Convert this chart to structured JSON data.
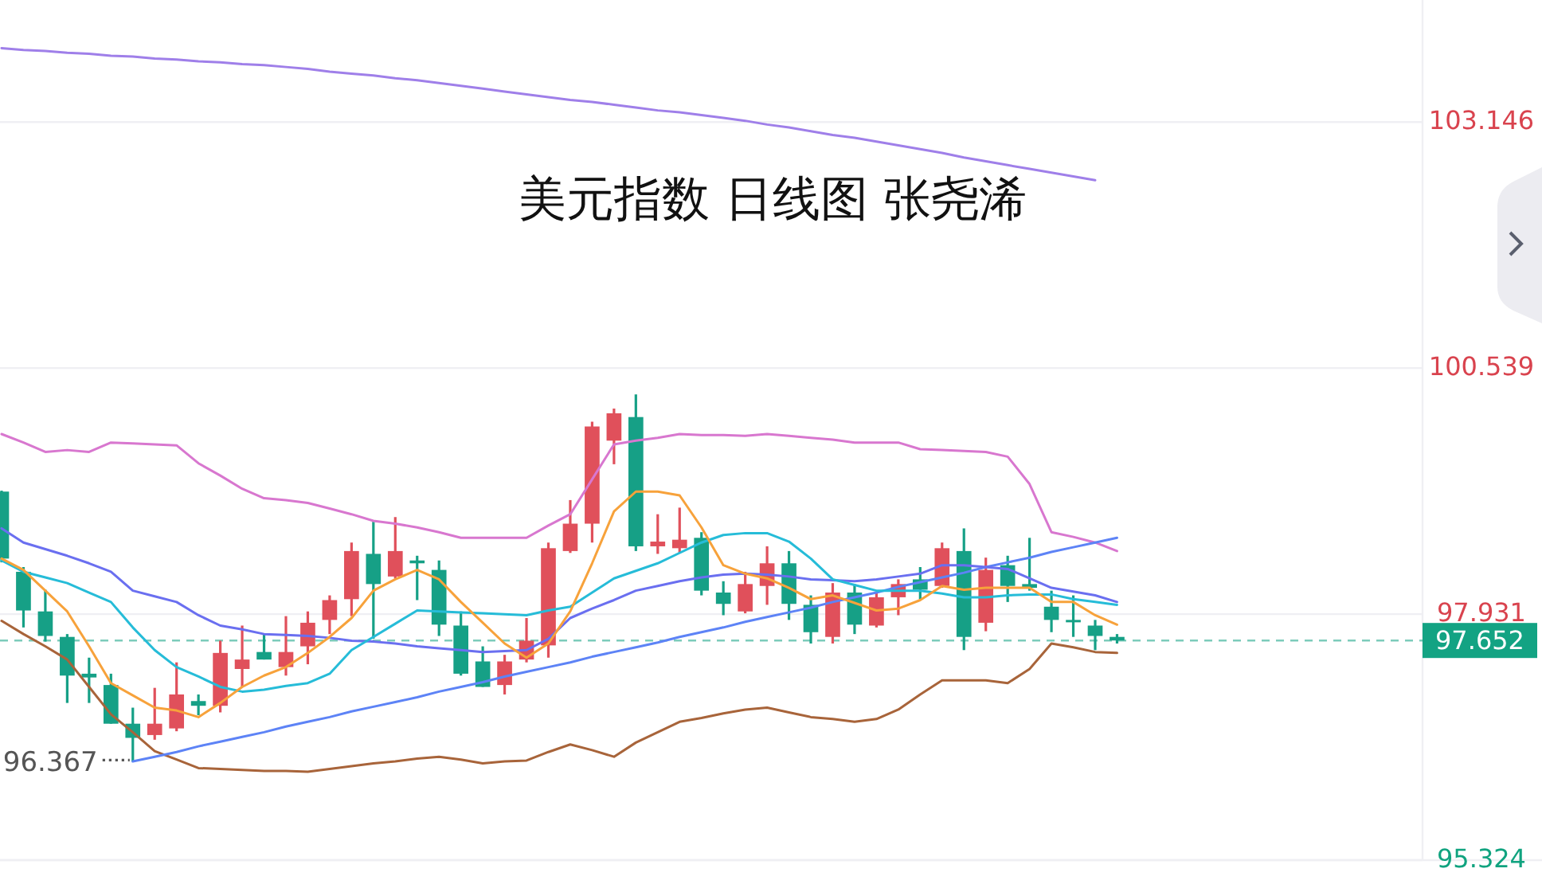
{
  "chart_data": {
    "type": "candlestick",
    "title": "美元指数 日线图 张尧浠",
    "categories": [
      null,
      null,
      null,
      null,
      null,
      null,
      null,
      null,
      null,
      null,
      null,
      null,
      null,
      null,
      null,
      null,
      null,
      null,
      null,
      null,
      null,
      null,
      null,
      null,
      null,
      null,
      null,
      null,
      null,
      null,
      null,
      null,
      null,
      null,
      null,
      null,
      null,
      null,
      null,
      null,
      null,
      null,
      null,
      null,
      null,
      null,
      null,
      null,
      null,
      null,
      null,
      null
    ],
    "ohlc": [
      [
        99.23,
        99.24,
        98.48,
        98.52
      ],
      [
        98.38,
        98.43,
        97.79,
        97.97
      ],
      [
        97.96,
        98.19,
        97.64,
        97.7
      ],
      [
        97.69,
        97.72,
        96.99,
        97.28
      ],
      [
        97.3,
        97.47,
        96.99,
        97.26
      ],
      [
        97.18,
        97.3,
        96.77,
        96.77
      ],
      [
        96.77,
        96.94,
        96.367,
        96.62
      ],
      [
        96.65,
        97.15,
        96.6,
        96.77
      ],
      [
        96.72,
        97.42,
        96.69,
        97.08
      ],
      [
        97.01,
        97.08,
        96.86,
        96.96
      ],
      [
        96.96,
        97.65,
        96.89,
        97.52
      ],
      [
        97.35,
        97.81,
        97.16,
        97.45
      ],
      [
        97.53,
        97.72,
        97.45,
        97.45
      ],
      [
        97.37,
        97.91,
        97.28,
        97.53
      ],
      [
        97.59,
        97.96,
        97.4,
        97.84
      ],
      [
        97.87,
        98.13,
        97.72,
        98.08
      ],
      [
        98.09,
        98.69,
        97.91,
        98.6
      ],
      [
        98.57,
        98.91,
        97.67,
        98.25
      ],
      [
        98.33,
        98.96,
        98.31,
        98.6
      ],
      [
        98.5,
        98.55,
        98.08,
        98.47
      ],
      [
        98.4,
        98.5,
        97.7,
        97.82
      ],
      [
        97.81,
        97.96,
        97.28,
        97.3
      ],
      [
        97.43,
        97.59,
        97.16,
        97.16
      ],
      [
        97.18,
        97.5,
        97.08,
        97.43
      ],
      [
        97.45,
        97.89,
        97.42,
        97.65
      ],
      [
        97.6,
        98.69,
        97.47,
        98.63
      ],
      [
        98.6,
        99.14,
        98.58,
        98.89
      ],
      [
        98.89,
        99.97,
        98.69,
        99.92
      ],
      [
        99.77,
        100.11,
        99.52,
        100.06
      ],
      [
        100.02,
        100.26,
        98.6,
        98.65
      ],
      [
        98.65,
        98.99,
        98.57,
        98.7
      ],
      [
        98.63,
        99.06,
        98.58,
        98.72
      ],
      [
        98.74,
        98.8,
        98.13,
        98.18
      ],
      [
        98.16,
        98.28,
        97.92,
        98.04
      ],
      [
        97.96,
        98.38,
        97.94,
        98.25
      ],
      [
        98.23,
        98.65,
        98.03,
        98.47
      ],
      [
        98.47,
        98.6,
        97.87,
        98.04
      ],
      [
        98.03,
        98.13,
        97.62,
        97.74
      ],
      [
        97.69,
        98.26,
        97.62,
        98.16
      ],
      [
        98.16,
        98.25,
        97.72,
        97.82
      ],
      [
        97.81,
        98.16,
        97.79,
        98.11
      ],
      [
        98.11,
        98.3,
        97.92,
        98.25
      ],
      [
        98.3,
        98.43,
        98.09,
        98.19
      ],
      [
        98.23,
        98.69,
        98.21,
        98.63
      ],
      [
        98.6,
        98.84,
        97.55,
        97.69
      ],
      [
        97.84,
        98.53,
        97.75,
        98.4
      ],
      [
        98.45,
        98.55,
        98.06,
        98.23
      ],
      [
        98.25,
        98.74,
        98.18,
        98.21
      ],
      [
        98.01,
        98.18,
        97.74,
        97.87
      ],
      [
        97.87,
        98.13,
        97.69,
        97.86
      ],
      [
        97.81,
        97.87,
        97.55,
        97.7
      ],
      [
        97.69,
        97.72,
        97.62,
        97.652
      ]
    ],
    "ylim": [
      95.324,
      104.44
    ],
    "yticks": [
      95.324,
      97.931,
      100.539,
      103.146
    ],
    "tick_labels": "y",
    "grid": "y",
    "series": [
      {
        "type": "line",
        "color": "#9f7fe9",
        "values": [
          103.93,
          103.91,
          103.9,
          103.88,
          103.87,
          103.85,
          103.84,
          103.82,
          103.81,
          103.79,
          103.78,
          103.76,
          103.75,
          103.73,
          103.71,
          103.68,
          103.66,
          103.64,
          103.61,
          103.59,
          103.56,
          103.53,
          103.5,
          103.47,
          103.44,
          103.41,
          103.38,
          103.36,
          103.33,
          103.3,
          103.27,
          103.25,
          103.22,
          103.19,
          103.16,
          103.12,
          103.09,
          103.05,
          103.01,
          102.98,
          102.94,
          102.9,
          102.86,
          102.82,
          102.77,
          102.73,
          102.69,
          102.65,
          102.61,
          102.57,
          102.53,
          null
        ]
      },
      {
        "type": "line",
        "color": "#d877cf",
        "values": [
          99.84,
          99.75,
          99.65,
          99.67,
          99.65,
          99.75,
          99.74,
          99.73,
          99.72,
          99.53,
          99.4,
          99.26,
          99.16,
          99.14,
          99.11,
          99.05,
          98.99,
          98.92,
          98.89,
          98.85,
          98.8,
          98.74,
          98.74,
          98.74,
          98.74,
          98.87,
          98.99,
          99.36,
          99.73,
          99.77,
          99.8,
          99.84,
          99.83,
          99.83,
          99.82,
          99.84,
          99.82,
          99.8,
          99.78,
          99.75,
          99.75,
          99.75,
          99.68,
          99.67,
          99.66,
          99.65,
          99.6,
          99.31,
          98.8,
          98.75,
          98.69,
          98.6
        ]
      },
      {
        "type": "line",
        "color": "#a8643a",
        "values": [
          97.86,
          97.72,
          97.59,
          97.45,
          97.16,
          96.87,
          96.68,
          96.48,
          96.39,
          96.3,
          96.29,
          96.28,
          96.27,
          96.27,
          96.26,
          96.29,
          96.32,
          96.35,
          96.37,
          96.4,
          96.42,
          96.39,
          96.35,
          96.37,
          96.38,
          96.47,
          96.55,
          96.49,
          96.42,
          96.57,
          96.68,
          96.79,
          96.83,
          96.88,
          96.92,
          96.94,
          96.89,
          96.84,
          96.82,
          96.79,
          96.82,
          96.92,
          97.08,
          97.23,
          97.23,
          97.23,
          97.2,
          97.35,
          97.62,
          97.58,
          97.53,
          97.52
        ]
      },
      {
        "type": "line",
        "color": "#5d83f6",
        "values": [
          null,
          null,
          null,
          null,
          null,
          null,
          96.37,
          96.42,
          96.47,
          96.53,
          96.58,
          96.63,
          96.68,
          96.74,
          96.79,
          96.84,
          96.9,
          96.95,
          97.0,
          97.05,
          97.11,
          97.16,
          97.21,
          97.27,
          97.32,
          97.37,
          97.42,
          97.48,
          97.53,
          97.58,
          97.63,
          97.69,
          97.74,
          97.79,
          97.85,
          97.9,
          97.95,
          98.0,
          98.06,
          98.11,
          98.16,
          98.22,
          98.27,
          98.32,
          98.37,
          98.43,
          98.48,
          98.53,
          98.59,
          98.64,
          98.69,
          98.74
        ]
      },
      {
        "type": "line",
        "color": "#6a6ff0",
        "values": [
          98.84,
          98.69,
          98.62,
          98.55,
          98.47,
          98.38,
          98.18,
          98.12,
          98.06,
          97.92,
          97.81,
          97.77,
          97.72,
          97.71,
          97.7,
          97.68,
          97.65,
          97.64,
          97.62,
          97.59,
          97.57,
          97.55,
          97.53,
          97.54,
          97.55,
          97.67,
          97.89,
          97.99,
          98.08,
          98.18,
          98.23,
          98.28,
          98.32,
          98.35,
          98.36,
          98.35,
          98.33,
          98.3,
          98.29,
          98.28,
          98.3,
          98.33,
          98.36,
          98.45,
          98.45,
          98.43,
          98.41,
          98.31,
          98.21,
          98.17,
          98.13,
          98.06
        ]
      },
      {
        "type": "line",
        "color": "#26bcd8",
        "values": [
          98.5,
          98.38,
          98.32,
          98.26,
          98.16,
          98.06,
          97.79,
          97.55,
          97.37,
          97.27,
          97.16,
          97.11,
          97.13,
          97.17,
          97.2,
          97.3,
          97.55,
          97.69,
          97.83,
          97.97,
          97.96,
          97.95,
          97.94,
          97.93,
          97.92,
          97.97,
          98.01,
          98.16,
          98.31,
          98.39,
          98.47,
          98.58,
          98.69,
          98.77,
          98.79,
          98.79,
          98.7,
          98.52,
          98.3,
          98.24,
          98.18,
          98.18,
          98.18,
          98.15,
          98.11,
          98.11,
          98.13,
          98.14,
          98.14,
          98.09,
          98.06,
          98.03
        ]
      },
      {
        "type": "line",
        "color": "#f7a23b",
        "values": [
          98.52,
          98.4,
          98.18,
          97.96,
          97.59,
          97.2,
          97.07,
          96.94,
          96.91,
          96.84,
          96.99,
          97.16,
          97.28,
          97.37,
          97.52,
          97.69,
          97.89,
          98.18,
          98.3,
          98.4,
          98.3,
          98.06,
          97.84,
          97.62,
          97.47,
          97.62,
          97.96,
          98.47,
          99.02,
          99.23,
          99.23,
          99.19,
          98.85,
          98.45,
          98.36,
          98.31,
          98.21,
          98.09,
          98.13,
          98.05,
          97.97,
          97.99,
          98.08,
          98.23,
          98.19,
          98.21,
          98.21,
          98.21,
          98.06,
          98.06,
          97.92,
          97.82
        ]
      }
    ],
    "ref_lines": [
      {
        "axis": "y",
        "value": 97.652,
        "label": "97.652",
        "color": "#13a383",
        "line_style": "dashed"
      }
    ],
    "annotations": [
      "96.367"
    ]
  }
}
